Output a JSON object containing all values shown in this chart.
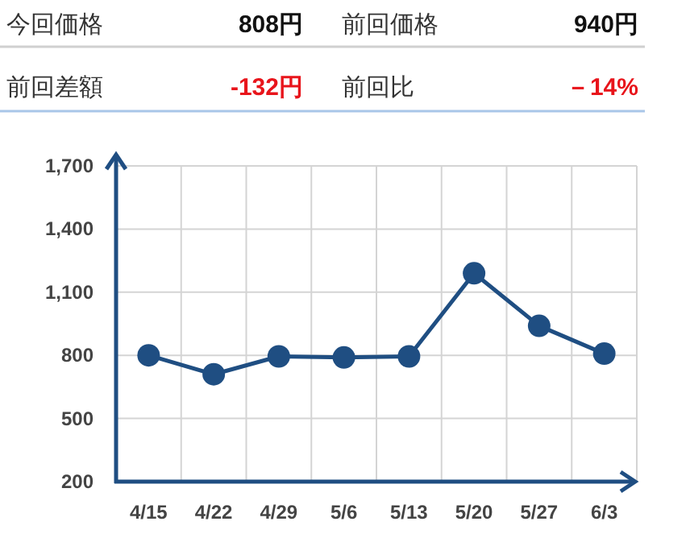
{
  "chart_data": [
    {
      "type": "other",
      "annotations": [
        "今回価格",
        "808円",
        "前回価格",
        "940円",
        "前回差額",
        "-132円",
        "前回比",
        "－14%"
      ]
    },
    {
      "type": "line",
      "categories": [
        "4/15",
        "4/22",
        "4/29",
        "5/6",
        "5/13",
        "5/20",
        "5/27",
        "6/3"
      ],
      "series": [
        {
          "color": "#1f4e82",
          "values": [
            800,
            710,
            795,
            790,
            795,
            1190,
            940,
            808
          ]
        }
      ],
      "ylim": [
        200,
        1700
      ],
      "yticks": [
        {
          "value": 200,
          "label": "200"
        },
        {
          "value": 500,
          "label": "500"
        },
        {
          "value": 800,
          "label": "800"
        },
        {
          "value": 1100,
          "label": "1,100"
        },
        {
          "value": 1400,
          "label": "1,400"
        },
        {
          "value": 1700,
          "label": "1,700"
        }
      ],
      "grid": true,
      "marker": "circle",
      "line_style": "solid"
    }
  ]
}
